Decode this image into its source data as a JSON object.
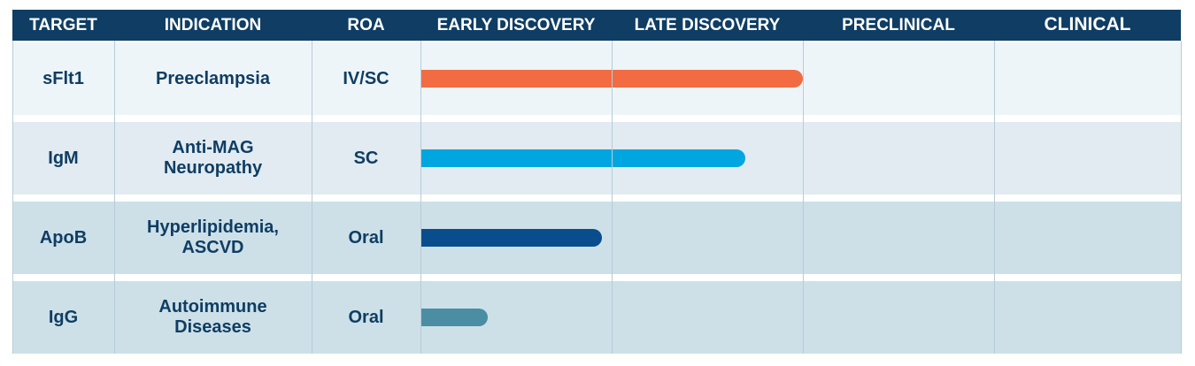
{
  "chart_data": {
    "type": "bar",
    "orientation": "horizontal",
    "columns": [
      "TARGET",
      "INDICATION",
      "ROA",
      "EARLY DISCOVERY",
      "LATE  DISCOVERY",
      "PRECLINICAL",
      "CLINICAL"
    ],
    "stages": [
      "EARLY DISCOVERY",
      "LATE  DISCOVERY",
      "PRECLINICAL",
      "CLINICAL"
    ],
    "rows": [
      {
        "target": "sFlt1",
        "indication": [
          "Preeclampsia"
        ],
        "roa": "IV/SC",
        "progress": 2.0,
        "color": "#f26b43"
      },
      {
        "target": "IgM",
        "indication": [
          "Anti-MAG",
          "Neuropathy"
        ],
        "roa": "SC",
        "progress": 1.7,
        "color": "#00a6df"
      },
      {
        "target": "ApoB",
        "indication": [
          "Hyperlipidemia,",
          "ASCVD"
        ],
        "roa": "Oral",
        "progress": 0.95,
        "color": "#0a4d8c"
      },
      {
        "target": "IgG",
        "indication": [
          "Autoimmune",
          "Diseases"
        ],
        "roa": "Oral",
        "progress": 0.35,
        "color": "#4b8ea4"
      }
    ],
    "row_backgrounds": [
      "#eef5f8",
      "#e1ebf1",
      "#cde0e8",
      "#cde0e8"
    ],
    "header_color": "#0f3d63",
    "text_color": "#0f3d63"
  }
}
